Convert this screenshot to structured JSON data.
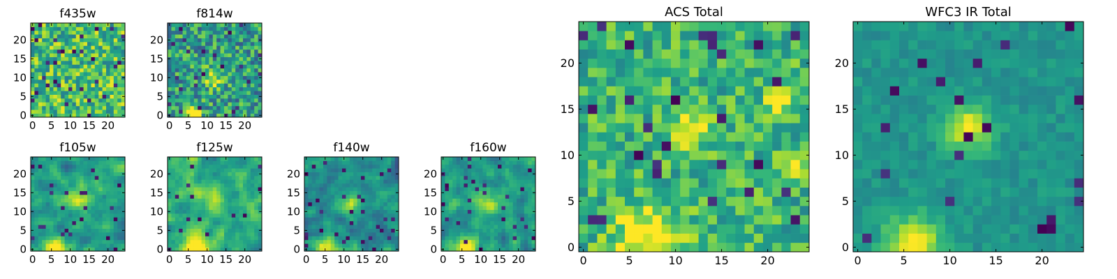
{
  "colors": {
    "colormap": "viridis",
    "axis_color": "#000000",
    "background": "#ffffff"
  },
  "chart_data": [
    {
      "type": "heatmap",
      "title": "f435w",
      "xticks": [
        0,
        5,
        10,
        15,
        20
      ],
      "yticks": [
        0,
        5,
        10,
        15,
        20
      ],
      "xlim": [
        -0.5,
        24.5
      ],
      "ylim": [
        -0.5,
        24.5
      ],
      "grid_size": 25,
      "source": "f435w",
      "value_range": [
        0,
        1
      ],
      "colormap": "viridis"
    },
    {
      "type": "heatmap",
      "title": "f814w",
      "xticks": [
        0,
        5,
        10,
        15,
        20
      ],
      "yticks": [
        0,
        5,
        10,
        15,
        20
      ],
      "xlim": [
        -0.5,
        24.5
      ],
      "ylim": [
        -0.5,
        24.5
      ],
      "grid_size": 25,
      "source": "f814w",
      "value_range": [
        0,
        1
      ],
      "colormap": "viridis"
    },
    {
      "type": "heatmap",
      "title": "f105w",
      "xticks": [
        0,
        5,
        10,
        15,
        20
      ],
      "yticks": [
        0,
        5,
        10,
        15,
        20
      ],
      "xlim": [
        -0.5,
        24.5
      ],
      "ylim": [
        -0.5,
        24.5
      ],
      "grid_size": 25,
      "source": "f105w",
      "value_range": [
        0,
        1
      ],
      "colormap": "viridis"
    },
    {
      "type": "heatmap",
      "title": "f125w",
      "xticks": [
        0,
        5,
        10,
        15,
        20
      ],
      "yticks": [
        0,
        5,
        10,
        15,
        20
      ],
      "xlim": [
        -0.5,
        24.5
      ],
      "ylim": [
        -0.5,
        24.5
      ],
      "grid_size": 25,
      "source": "f125w",
      "value_range": [
        0,
        1
      ],
      "colormap": "viridis"
    },
    {
      "type": "heatmap",
      "title": "f140w",
      "xticks": [
        0,
        5,
        10,
        15,
        20
      ],
      "yticks": [
        0,
        5,
        10,
        15,
        20
      ],
      "xlim": [
        -0.5,
        24.5
      ],
      "ylim": [
        -0.5,
        24.5
      ],
      "grid_size": 25,
      "source": "f140w",
      "value_range": [
        0,
        1
      ],
      "colormap": "viridis"
    },
    {
      "type": "heatmap",
      "title": "f160w",
      "xticks": [
        0,
        5,
        10,
        15,
        20
      ],
      "yticks": [
        0,
        5,
        10,
        15,
        20
      ],
      "xlim": [
        -0.5,
        24.5
      ],
      "ylim": [
        -0.5,
        24.5
      ],
      "grid_size": 25,
      "source": "f160w",
      "value_range": [
        0,
        1
      ],
      "colormap": "viridis"
    },
    {
      "type": "heatmap",
      "title": "ACS Total",
      "xticks": [
        0,
        5,
        10,
        15,
        20
      ],
      "yticks": [
        0,
        5,
        10,
        15,
        20
      ],
      "xlim": [
        -0.5,
        24.5
      ],
      "ylim": [
        -0.5,
        24.5
      ],
      "grid_size": 25,
      "source": "acs",
      "value_range": [
        0,
        1
      ],
      "colormap": "viridis"
    },
    {
      "type": "heatmap",
      "title": "WFC3 IR Total",
      "xticks": [
        0,
        5,
        10,
        15,
        20
      ],
      "yticks": [
        0,
        5,
        10,
        15,
        20
      ],
      "xlim": [
        -0.5,
        24.5
      ],
      "ylim": [
        -0.5,
        24.5
      ],
      "grid_size": 25,
      "source": "wfc3",
      "value_range": [
        0,
        1
      ],
      "colormap": "viridis"
    }
  ]
}
